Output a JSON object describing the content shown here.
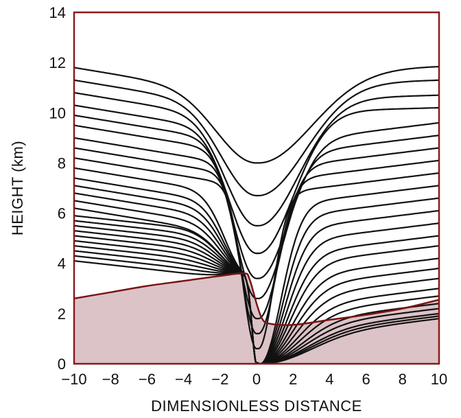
{
  "chart_data": {
    "type": "line",
    "title": "",
    "xlabel": "DIMENSIONLESS DISTANCE",
    "ylabel": "HEIGHT (km)",
    "xlim": [
      -10,
      10
    ],
    "ylim": [
      0,
      14
    ],
    "x_ticks": [
      "−10",
      "−8",
      "−6",
      "−4",
      "−2",
      "0",
      "2",
      "4",
      "6",
      "8",
      "10"
    ],
    "y_ticks": [
      "0",
      "2",
      "4",
      "6",
      "8",
      "10",
      "12",
      "14"
    ],
    "grid": false,
    "legend": "none",
    "colors": {
      "frame": "#8a1a1a",
      "shaded_fill": "#dcc3c7",
      "lines": "#111111",
      "boundary": "#7a1414"
    },
    "shaded_region": {
      "name": "",
      "upper_boundary": [
        {
          "x": -10,
          "y": 2.6
        },
        {
          "x": -8,
          "y": 2.85
        },
        {
          "x": -6,
          "y": 3.1
        },
        {
          "x": -4,
          "y": 3.3
        },
        {
          "x": -2,
          "y": 3.5
        },
        {
          "x": -0.7,
          "y": 3.6
        },
        {
          "x": -0.4,
          "y": 3.4
        },
        {
          "x": 0.0,
          "y": 2.4
        },
        {
          "x": 0.3,
          "y": 1.8
        },
        {
          "x": 0.7,
          "y": 1.6
        },
        {
          "x": 2,
          "y": 1.55
        },
        {
          "x": 4,
          "y": 1.75
        },
        {
          "x": 6,
          "y": 1.95
        },
        {
          "x": 8,
          "y": 2.2
        },
        {
          "x": 10,
          "y": 2.55
        }
      ]
    },
    "series": [
      {
        "left_height": 11.8,
        "dip_min": 8.0,
        "right_height": 11.85
      },
      {
        "left_height": 11.3,
        "dip_min": 6.7,
        "right_height": 11.3
      },
      {
        "left_height": 10.8,
        "dip_min": 5.5,
        "right_height": 10.7
      },
      {
        "left_height": 10.3,
        "dip_min": 4.4,
        "right_height": 10.2
      },
      {
        "left_height": 9.9,
        "dip_min": 3.4,
        "right_height": 9.6
      },
      {
        "left_height": 9.5,
        "dip_min": 2.6,
        "right_height": 9.1
      },
      {
        "left_height": 9.0,
        "dip_min": 1.8,
        "right_height": 8.6
      },
      {
        "left_height": 8.6,
        "dip_min": 1.2,
        "right_height": 8.1
      },
      {
        "left_height": 8.2,
        "dip_min": 0.6,
        "right_height": 7.6
      },
      {
        "left_height": 7.8,
        "dip_min": 0.0,
        "right_height": 7.1
      },
      {
        "left_height": 7.4,
        "dip_min": 0.0,
        "right_height": 6.6
      },
      {
        "left_height": 7.1,
        "dip_min": 0.0,
        "right_height": 6.1
      },
      {
        "left_height": 6.8,
        "dip_min": 0.0,
        "right_height": 5.6
      },
      {
        "left_height": 6.5,
        "dip_min": 0.0,
        "right_height": 5.1
      },
      {
        "left_height": 6.2,
        "dip_min": 0.0,
        "right_height": 4.7
      },
      {
        "left_height": 5.9,
        "dip_min": 0.0,
        "right_height": 4.2
      },
      {
        "left_height": 5.7,
        "dip_min": 0.0,
        "right_height": 3.8
      },
      {
        "left_height": 5.5,
        "dip_min": 0.0,
        "right_height": 3.4
      },
      {
        "left_height": 5.3,
        "dip_min": 0.0,
        "right_height": 3.0
      },
      {
        "left_height": 5.1,
        "dip_min": 0.0,
        "right_height": 2.7
      },
      {
        "left_height": 4.9,
        "dip_min": 0.0,
        "right_height": 2.4
      },
      {
        "left_height": 4.7,
        "dip_min": 0.0,
        "right_height": 2.2
      },
      {
        "left_height": 4.5,
        "dip_min": 0.0,
        "right_height": 2.0
      },
      {
        "left_height": 4.3,
        "dip_min": 0.0,
        "right_height": 1.9
      },
      {
        "left_height": 4.1,
        "dip_min": 0.0,
        "right_height": 1.8
      }
    ]
  }
}
